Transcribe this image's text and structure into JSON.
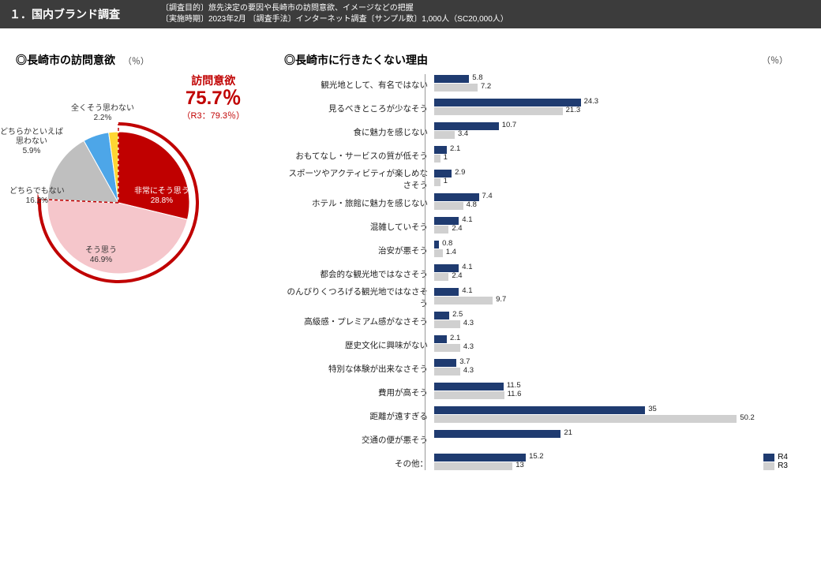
{
  "header": {
    "title": "１．国内ブランド調査",
    "meta1": "〔調査目的〕旅先決定の要因や長崎市の訪問意欲、イメージなどの把握",
    "meta2": "〔実施時期〕2023年2月 〔調査手法〕インターネット調査〔サンプル数〕1,000人（SC20,000人）"
  },
  "pie": {
    "title": "◎長崎市の訪問意欲",
    "unit": "（％）",
    "headline_label": "訪問意欲",
    "headline_value": "75.7％",
    "headline_sub": "（R3：79.3％）",
    "colors": {
      "ring": "#c00000",
      "slices": [
        "#c00000",
        "#f5c6cb",
        "#bfbfbf",
        "#4da6e8",
        "#ffd633"
      ]
    },
    "slices": [
      {
        "label": "非常にそう思う",
        "pct": 28.8
      },
      {
        "label": "そう思う",
        "pct": 46.9
      },
      {
        "label": "どちらでもない",
        "pct": 16.2
      },
      {
        "label": "どちらかといえば\n思わない",
        "pct": 5.9
      },
      {
        "label": "全くそう思わない",
        "pct": 2.2
      }
    ]
  },
  "bars": {
    "title": "◎長崎市に行きたくない理由",
    "unit": "（％）",
    "colors": {
      "r4": "#1f3b70",
      "r3": "#d0d0d0"
    },
    "max_x": 55,
    "legend": {
      "r4": "R4",
      "r3": "R3"
    },
    "categories": [
      {
        "label": "観光地として、有名ではない",
        "r4": 5.8,
        "r3": 7.2
      },
      {
        "label": "見るべきところが少なそう",
        "r4": 24.3,
        "r3": 21.3
      },
      {
        "label": "食に魅力を感じない",
        "r4": 10.7,
        "r3": 3.4
      },
      {
        "label": "おもてなし・サービスの質が低そう",
        "r4": 2.1,
        "r3": 1
      },
      {
        "label": "スポーツやアクティビティが楽しめなさそう",
        "r4": 2.9,
        "r3": 1
      },
      {
        "label": "ホテル・旅館に魅力を感じない",
        "r4": 7.4,
        "r3": 4.8
      },
      {
        "label": "混雑していそう",
        "r4": 4.1,
        "r3": 2.4
      },
      {
        "label": "治安が悪そう",
        "r4": 0.8,
        "r3": 1.4
      },
      {
        "label": "都会的な観光地ではなさそう",
        "r4": 4.1,
        "r3": 2.4
      },
      {
        "label": "のんびりくつろげる観光地ではなさそう",
        "r4": 4.1,
        "r3": 9.7
      },
      {
        "label": "高級感・プレミアム感がなさそう",
        "r4": 2.5,
        "r3": 4.3
      },
      {
        "label": "歴史文化に興味がない",
        "r4": 2.1,
        "r3": 4.3
      },
      {
        "label": "特別な体験が出来なさそう",
        "r4": 3.7,
        "r3": 4.3
      },
      {
        "label": "費用が高そう",
        "r4": 11.5,
        "r3": 11.6
      },
      {
        "label": "距離が遠すぎる",
        "r4": 35.0,
        "r3": 50.2
      },
      {
        "label": "交通の便が悪そう",
        "r4": 21.0,
        "r3": null
      },
      {
        "label": "その他：",
        "r4": 15.2,
        "r3": 13
      }
    ]
  }
}
